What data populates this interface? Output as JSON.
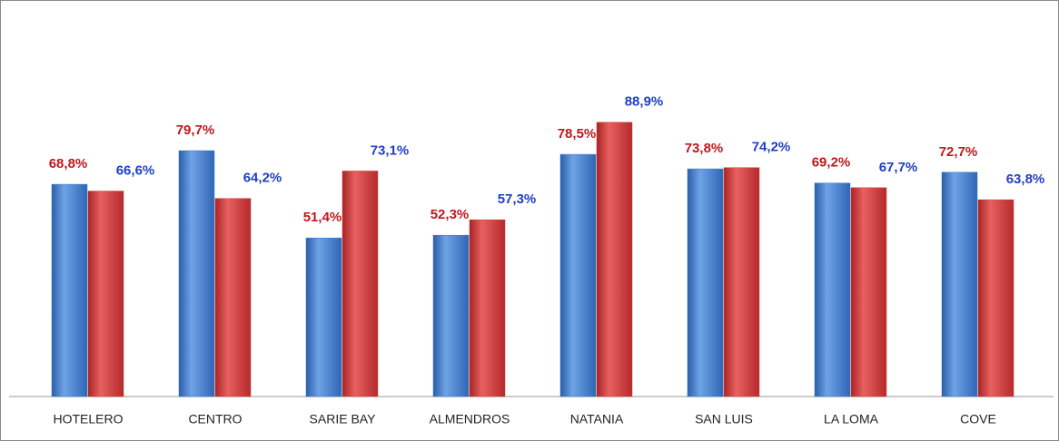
{
  "chart_data": {
    "type": "bar",
    "categories": [
      "HOTELERO",
      "CENTRO",
      "SARIE BAY",
      "ALMENDROS",
      "NATANIA",
      "SAN LUIS",
      "LA LOMA",
      "COVE"
    ],
    "series": [
      {
        "color": "#3b78c9",
        "label_color": "#c0171c",
        "values": [
          68.8,
          79.7,
          51.4,
          52.3,
          78.5,
          73.8,
          69.2,
          72.7
        ],
        "value_labels": [
          "68,8%",
          "79,7%",
          "51,4%",
          "52,3%",
          "78,5%",
          "73,8%",
          "69,2%",
          "72,7%"
        ]
      },
      {
        "color": "#d23a3a",
        "label_color": "#1f3fc4",
        "values": [
          66.6,
          64.2,
          73.1,
          57.3,
          88.9,
          74.2,
          67.7,
          63.8
        ],
        "value_labels": [
          "66,6%",
          "64,2%",
          "73,1%",
          "57,3%",
          "88,9%",
          "74,2%",
          "67,7%",
          "63,8%"
        ]
      }
    ],
    "ylim": [
      0,
      100
    ]
  }
}
